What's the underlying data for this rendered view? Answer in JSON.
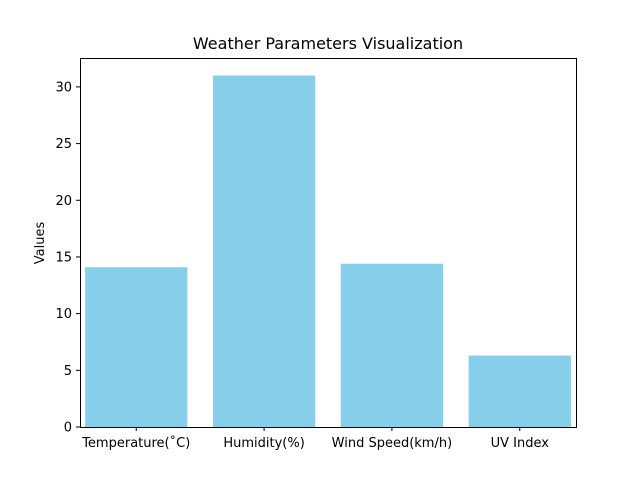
{
  "chart_data": {
    "type": "bar",
    "title": "Weather Parameters Visualization",
    "xlabel": "",
    "ylabel": "Values",
    "categories": [
      "Temperature(˚C)",
      "Humidity(%)",
      "Wind Speed(km/h)",
      "UV Index"
    ],
    "values": [
      14.1,
      31.0,
      14.4,
      6.3
    ],
    "ylim": [
      0,
      32.55
    ],
    "yticks": [
      0,
      5,
      10,
      15,
      20,
      25,
      30
    ],
    "bar_color": "#87CEEB",
    "grid": false,
    "legend": "none"
  }
}
